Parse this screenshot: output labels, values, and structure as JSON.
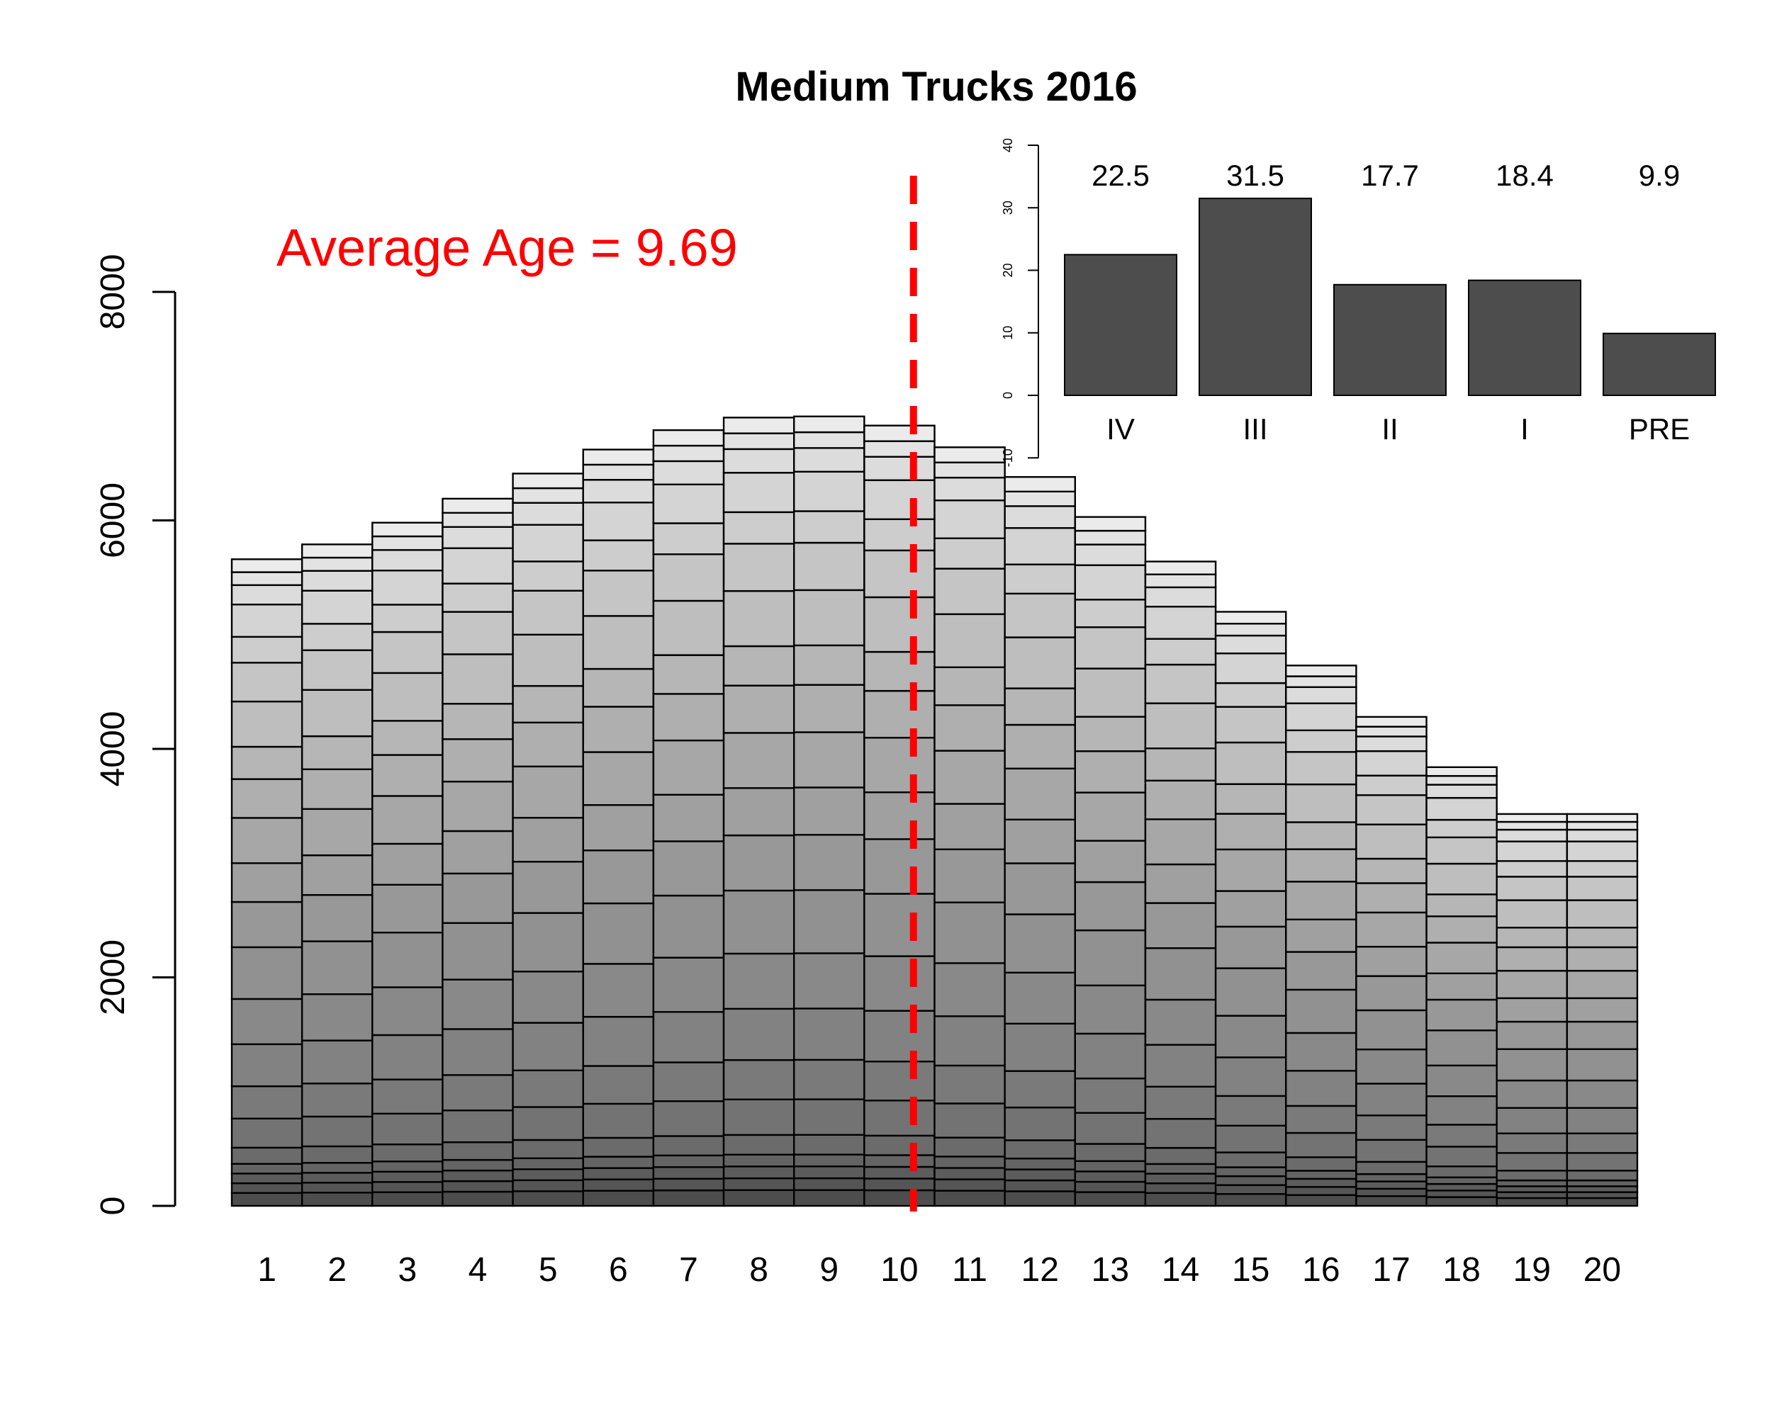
{
  "chart_data": [
    {
      "type": "bar",
      "stacked": true,
      "title": "Medium Trucks 2016",
      "annotation": "Average Age = 9.69",
      "average_age": 9.69,
      "reference_line_x": 10.2,
      "colors": {
        "annotation": "#ff0000",
        "reference_line": "#ff0000",
        "stack_dark": "#4d4d4d",
        "stack_light": "#ebebeb"
      },
      "xlabel": "",
      "ylabel": "",
      "ylim": [
        0,
        8000
      ],
      "yticks": [
        "0",
        "2000",
        "4000",
        "6000",
        "8000"
      ],
      "categories": [
        "1",
        "2",
        "3",
        "4",
        "5",
        "6",
        "7",
        "8",
        "9",
        "10",
        "11",
        "12",
        "13",
        "14",
        "15",
        "16",
        "17",
        "18",
        "19",
        "20"
      ],
      "values": [
        5660,
        5790,
        5980,
        6190,
        6410,
        6620,
        6790,
        6900,
        6910,
        6830,
        6640,
        6380,
        6030,
        5640,
        5200,
        4730,
        4280,
        3840,
        3430,
        3430
      ],
      "grid": false,
      "legend": "none"
    },
    {
      "type": "bar",
      "title": "",
      "xlabel": "",
      "ylabel": "",
      "ylim": [
        -10,
        40
      ],
      "yticks": [
        "-10",
        "0",
        "10",
        "20",
        "30",
        "40"
      ],
      "categories": [
        "IV",
        "III",
        "II",
        "I",
        "PRE"
      ],
      "values": [
        22.5,
        31.5,
        17.7,
        18.4,
        9.9
      ],
      "value_labels": [
        "22.5",
        "31.5",
        "17.7",
        "18.4",
        "9.9"
      ],
      "bar_color": "#4d4d4d",
      "grid": false,
      "legend": "none"
    }
  ]
}
